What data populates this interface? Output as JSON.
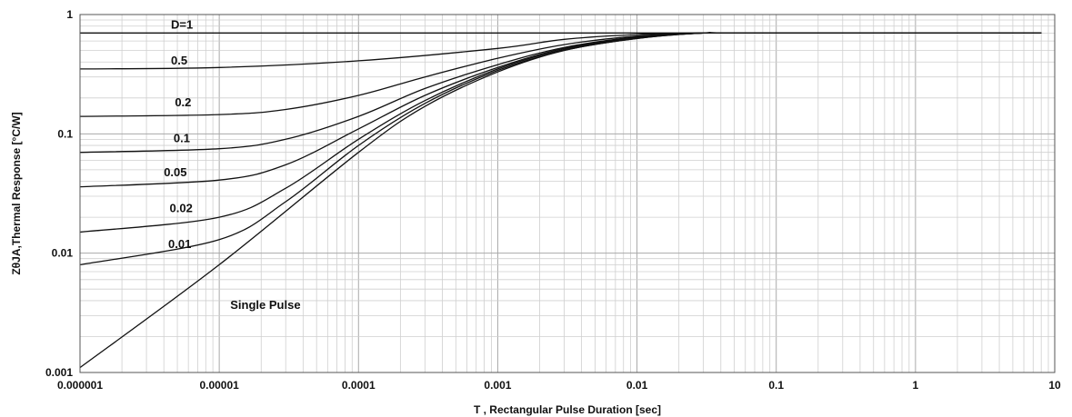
{
  "chart_data": {
    "type": "line",
    "xlabel": "T , Rectangular Pulse Duration [sec]",
    "ylabel": "ZθJA,Thermal Response [°C/W]",
    "x_scale": "log",
    "y_scale": "log",
    "xlim": [
      1e-06,
      10
    ],
    "ylim": [
      0.001,
      1
    ],
    "x_ticks": [
      "0.000001",
      "0.00001",
      "0.0001",
      "0.001",
      "0.01",
      "0.1",
      "1",
      "10"
    ],
    "y_ticks": [
      "0.001",
      "0.01",
      "0.1",
      "1"
    ],
    "grid": true,
    "series": [
      {
        "name": "D=1",
        "x": [
          1e-06,
          1e-05,
          0.0001,
          0.001,
          0.01,
          0.1,
          1,
          8
        ],
        "y": [
          0.7,
          0.7,
          0.7,
          0.7,
          0.7,
          0.7,
          0.7,
          0.7
        ]
      },
      {
        "name": "0.5",
        "x": [
          1e-06,
          1e-05,
          0.0001,
          0.001,
          0.003,
          0.01,
          0.03,
          0.06,
          8
        ],
        "y": [
          0.35,
          0.36,
          0.41,
          0.52,
          0.62,
          0.68,
          0.7,
          0.7,
          0.7
        ]
      },
      {
        "name": "0.2",
        "x": [
          1e-06,
          1e-05,
          3e-05,
          0.0001,
          0.0003,
          0.001,
          0.003,
          0.01,
          0.03,
          0.06,
          8
        ],
        "y": [
          0.14,
          0.145,
          0.16,
          0.21,
          0.3,
          0.43,
          0.56,
          0.66,
          0.7,
          0.7,
          0.7
        ]
      },
      {
        "name": "0.1",
        "x": [
          1e-06,
          1e-05,
          3e-05,
          0.0001,
          0.0003,
          0.001,
          0.003,
          0.01,
          0.03,
          0.06,
          8
        ],
        "y": [
          0.07,
          0.075,
          0.09,
          0.14,
          0.24,
          0.38,
          0.53,
          0.65,
          0.7,
          0.7,
          0.7
        ]
      },
      {
        "name": "0.05",
        "x": [
          1e-06,
          1e-05,
          3e-05,
          0.0001,
          0.0003,
          0.001,
          0.003,
          0.01,
          0.03,
          0.06,
          8
        ],
        "y": [
          0.036,
          0.041,
          0.055,
          0.11,
          0.21,
          0.36,
          0.52,
          0.64,
          0.7,
          0.7,
          0.7
        ]
      },
      {
        "name": "0.02",
        "x": [
          1e-06,
          1e-05,
          3e-05,
          0.0001,
          0.0003,
          0.001,
          0.003,
          0.01,
          0.03,
          0.06,
          8
        ],
        "y": [
          0.015,
          0.02,
          0.035,
          0.09,
          0.19,
          0.35,
          0.51,
          0.64,
          0.7,
          0.7,
          0.7
        ]
      },
      {
        "name": "0.01",
        "x": [
          1e-06,
          1e-05,
          3e-05,
          0.0001,
          0.0003,
          0.001,
          0.003,
          0.01,
          0.03,
          0.06,
          8
        ],
        "y": [
          0.008,
          0.013,
          0.027,
          0.08,
          0.18,
          0.34,
          0.5,
          0.63,
          0.7,
          0.7,
          0.7
        ]
      },
      {
        "name": "Single Pulse",
        "x": [
          1e-06,
          1e-05,
          0.0001,
          0.0003,
          0.001,
          0.003,
          0.01,
          0.03,
          0.06,
          8
        ],
        "y": [
          0.0011,
          0.008,
          0.07,
          0.17,
          0.33,
          0.5,
          0.63,
          0.7,
          0.7,
          0.7
        ]
      }
    ]
  }
}
